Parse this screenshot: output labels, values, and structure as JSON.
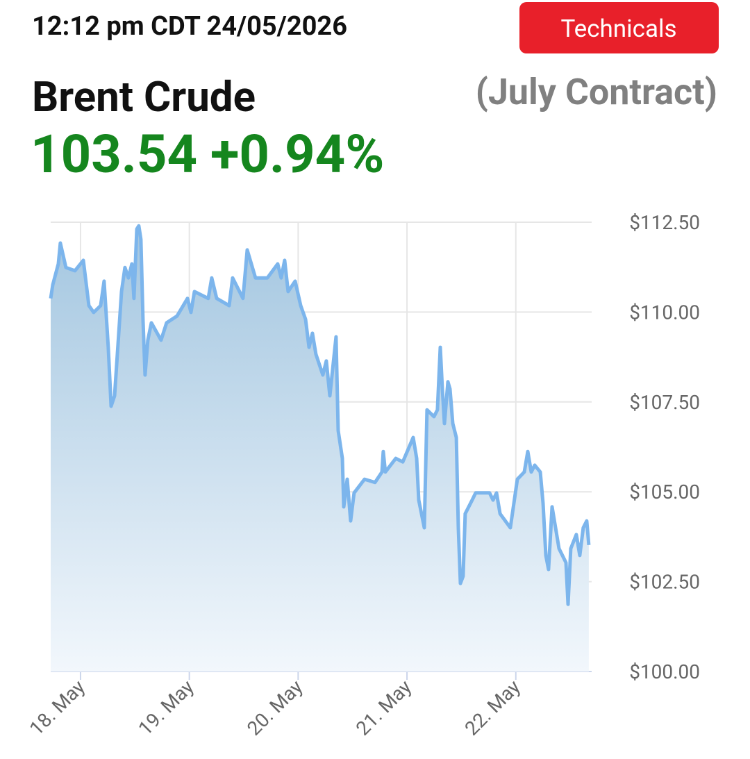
{
  "header": {
    "timestamp": "12:12 pm CDT 24/05/2026",
    "button": "Technicals",
    "name": "Brent Crude",
    "contract": "(July Contract)",
    "quote": "103.54 +0.94%"
  },
  "chart_data": {
    "type": "area",
    "color": "#7cb5ec",
    "grid": true,
    "xlim": [
      17.726,
      22.697
    ],
    "ylim": [
      100,
      112.5
    ],
    "xticks": [
      {
        "value": 18,
        "label": "18. May"
      },
      {
        "value": 19,
        "label": "19. May"
      },
      {
        "value": 20,
        "label": "20. May"
      },
      {
        "value": 21,
        "label": "21. May"
      },
      {
        "value": 22,
        "label": "22. May"
      }
    ],
    "yticks": [
      {
        "value": 100,
        "label": "$100.00"
      },
      {
        "value": 102.5,
        "label": "$102.50"
      },
      {
        "value": 105,
        "label": "$105.00"
      },
      {
        "value": 107.5,
        "label": "$107.50"
      },
      {
        "value": 110,
        "label": "$110.00"
      },
      {
        "value": 112.5,
        "label": "$112.50"
      }
    ],
    "x": [
      17.726,
      17.745,
      17.796,
      17.815,
      17.866,
      17.949,
      18.026,
      18.077,
      18.121,
      18.185,
      18.217,
      18.255,
      18.281,
      18.313,
      18.377,
      18.408,
      18.44,
      18.472,
      18.491,
      18.517,
      18.536,
      18.555,
      18.574,
      18.593,
      18.619,
      18.651,
      18.74,
      18.791,
      18.887,
      18.983,
      19.015,
      19.047,
      19.174,
      19.206,
      19.251,
      19.366,
      19.398,
      19.493,
      19.532,
      19.608,
      19.717,
      19.812,
      19.844,
      19.876,
      19.908,
      19.972,
      20.023,
      20.068,
      20.1,
      20.131,
      20.163,
      20.227,
      20.259,
      20.291,
      20.348,
      20.368,
      20.406,
      20.419,
      20.451,
      20.482,
      20.514,
      20.61,
      20.706,
      20.77,
      20.782,
      20.801,
      20.897,
      20.961,
      21.057,
      21.089,
      21.108,
      21.159,
      21.184,
      21.248,
      21.28,
      21.306,
      21.325,
      21.344,
      21.376,
      21.395,
      21.421,
      21.453,
      21.472,
      21.491,
      21.516,
      21.535,
      21.599,
      21.631,
      21.759,
      21.791,
      21.823,
      21.855,
      21.95,
      22.014,
      22.078,
      22.11,
      22.142,
      22.174,
      22.225,
      22.25,
      22.276,
      22.301,
      22.333,
      22.397,
      22.461,
      22.48,
      22.505,
      22.556,
      22.588,
      22.62,
      22.652,
      22.671
    ],
    "values": [
      110.38,
      110.76,
      111.34,
      111.92,
      111.24,
      111.15,
      111.44,
      110.18,
      109.99,
      110.18,
      110.86,
      109.02,
      107.38,
      107.67,
      110.57,
      111.24,
      110.95,
      111.34,
      110.38,
      112.31,
      112.4,
      112.02,
      109.8,
      108.25,
      109.22,
      109.7,
      109.22,
      109.7,
      109.89,
      110.38,
      109.99,
      110.57,
      110.38,
      110.95,
      110.38,
      110.18,
      110.95,
      110.38,
      111.73,
      110.95,
      110.95,
      111.34,
      110.95,
      111.44,
      110.57,
      110.86,
      110.18,
      109.8,
      109.02,
      109.41,
      108.83,
      108.25,
      108.64,
      107.67,
      109.31,
      106.7,
      105.93,
      104.58,
      105.35,
      104.19,
      104.97,
      105.35,
      105.26,
      105.55,
      106.12,
      105.55,
      105.93,
      105.83,
      106.51,
      105.93,
      104.77,
      104.0,
      107.28,
      107.09,
      107.28,
      109.02,
      107.86,
      106.9,
      108.06,
      107.86,
      106.9,
      106.51,
      104.0,
      102.45,
      102.65,
      104.39,
      104.77,
      104.97,
      104.97,
      104.77,
      104.97,
      104.39,
      104.0,
      105.35,
      105.55,
      106.12,
      105.55,
      105.74,
      105.55,
      104.68,
      103.23,
      102.84,
      104.58,
      103.42,
      103.03,
      101.87,
      103.42,
      103.81,
      103.23,
      104.0,
      104.19,
      103.52
    ]
  }
}
